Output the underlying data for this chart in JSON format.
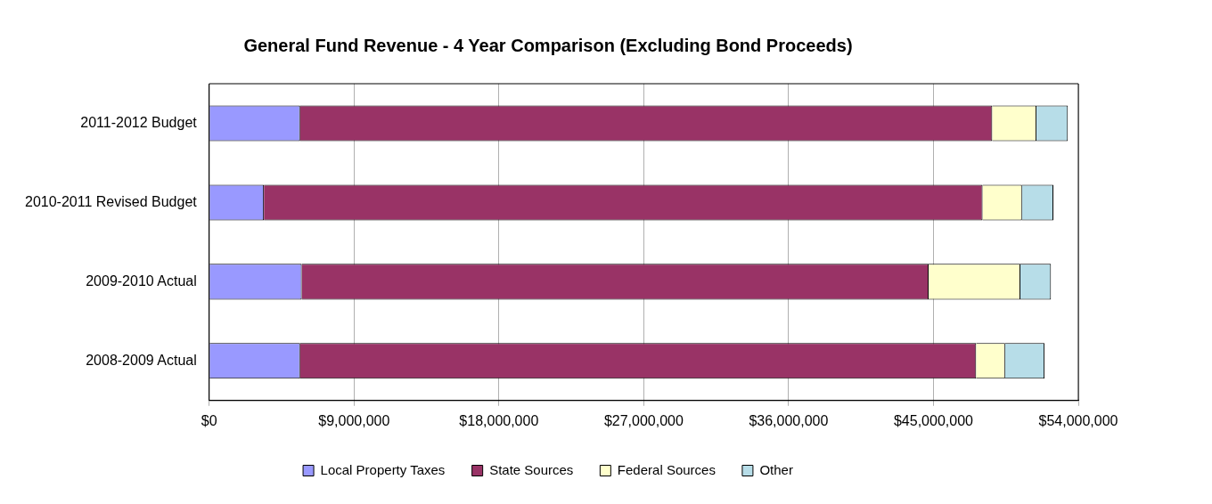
{
  "chart_data": {
    "type": "bar",
    "orientation": "horizontal",
    "stacked": true,
    "title": "General Fund Revenue - 4 Year Comparison (Excluding Bond Proceeds)",
    "categories": [
      "2011-2012 Budget",
      "2010-2011 Revised Budget",
      "2009-2010 Actual",
      "2008-2009 Actual"
    ],
    "series": [
      {
        "name": "Local Property Taxes",
        "color": "#9999ff",
        "values": [
          5650000,
          3400000,
          5750000,
          5650000
        ]
      },
      {
        "name": "State Sources",
        "color": "#993366",
        "values": [
          43000000,
          44650000,
          38950000,
          42000000
        ]
      },
      {
        "name": "Federal Sources",
        "color": "#ffffcc",
        "values": [
          2750000,
          2450000,
          5700000,
          1800000
        ]
      },
      {
        "name": "Other",
        "color": "#b7dde8",
        "values": [
          1950000,
          1950000,
          1900000,
          2450000
        ]
      }
    ],
    "xlim": [
      0,
      54000000
    ],
    "xticks": [
      {
        "value": 0,
        "label": "$0"
      },
      {
        "value": 9000000,
        "label": "$9,000,000"
      },
      {
        "value": 18000000,
        "label": "$18,000,000"
      },
      {
        "value": 27000000,
        "label": "$27,000,000"
      },
      {
        "value": 36000000,
        "label": "$36,000,000"
      },
      {
        "value": 45000000,
        "label": "$45,000,000"
      },
      {
        "value": 54000000,
        "label": "$54,000,000"
      }
    ],
    "grid": "x",
    "legend": "bottom"
  }
}
